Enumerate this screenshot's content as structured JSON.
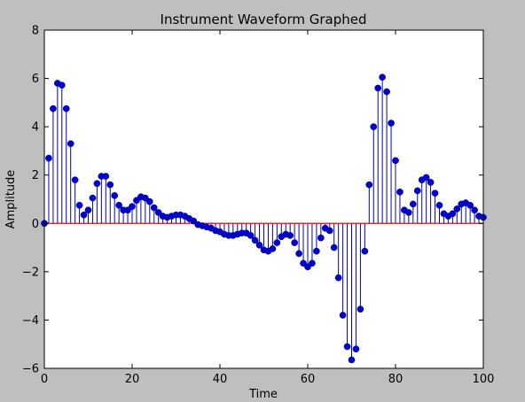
{
  "chart_data": {
    "type": "stem",
    "title": "Instrument Waveform Graphed",
    "xlabel": "Time",
    "ylabel": "Amplitude",
    "xlim": [
      0,
      100
    ],
    "ylim": [
      -6,
      8
    ],
    "xticks": [
      0,
      20,
      40,
      60,
      80,
      100
    ],
    "yticks": [
      -6,
      -4,
      -2,
      0,
      2,
      4,
      6,
      8
    ],
    "grid": false,
    "legend": "none",
    "colors": {
      "figure_background": "#bfbfbf",
      "axes_background": "#ffffff",
      "stem": "#0000bf",
      "marker": "#0000cc",
      "baseline": "#ff0000"
    },
    "x": [
      0,
      1,
      2,
      3,
      4,
      5,
      6,
      7,
      8,
      9,
      10,
      11,
      12,
      13,
      14,
      15,
      16,
      17,
      18,
      19,
      20,
      21,
      22,
      23,
      24,
      25,
      26,
      27,
      28,
      29,
      30,
      31,
      32,
      33,
      34,
      35,
      36,
      37,
      38,
      39,
      40,
      41,
      42,
      43,
      44,
      45,
      46,
      47,
      48,
      49,
      50,
      51,
      52,
      53,
      54,
      55,
      56,
      57,
      58,
      59,
      60,
      61,
      62,
      63,
      64,
      65,
      66,
      67,
      68,
      69,
      70,
      71,
      72,
      73,
      74,
      75,
      76,
      77,
      78,
      79,
      80,
      81,
      82,
      83,
      84,
      85,
      86,
      87,
      88,
      89,
      90,
      91,
      92,
      93,
      94,
      95,
      96,
      97,
      98,
      99,
      100
    ],
    "y": [
      0.0,
      2.7,
      4.75,
      5.8,
      5.72,
      4.75,
      3.3,
      1.8,
      0.75,
      0.35,
      0.55,
      1.05,
      1.65,
      1.95,
      1.95,
      1.6,
      1.15,
      0.75,
      0.55,
      0.55,
      0.7,
      0.95,
      1.1,
      1.05,
      0.9,
      0.65,
      0.45,
      0.3,
      0.25,
      0.3,
      0.35,
      0.35,
      0.3,
      0.2,
      0.1,
      -0.05,
      -0.1,
      -0.15,
      -0.2,
      -0.3,
      -0.35,
      -0.45,
      -0.5,
      -0.5,
      -0.45,
      -0.4,
      -0.4,
      -0.5,
      -0.7,
      -0.9,
      -1.1,
      -1.15,
      -1.05,
      -0.8,
      -0.55,
      -0.45,
      -0.5,
      -0.8,
      -1.25,
      -1.65,
      -1.8,
      -1.65,
      -1.15,
      -0.6,
      -0.2,
      -0.3,
      -1.0,
      -2.25,
      -3.8,
      -5.1,
      -5.65,
      -5.2,
      -3.55,
      -1.15,
      1.6,
      4.0,
      5.6,
      6.05,
      5.45,
      4.15,
      2.6,
      1.3,
      0.55,
      0.45,
      0.8,
      1.35,
      1.8,
      1.9,
      1.7,
      1.25,
      0.75,
      0.4,
      0.3,
      0.4,
      0.6,
      0.8,
      0.85,
      0.75,
      0.55,
      0.3,
      0.25
    ]
  }
}
